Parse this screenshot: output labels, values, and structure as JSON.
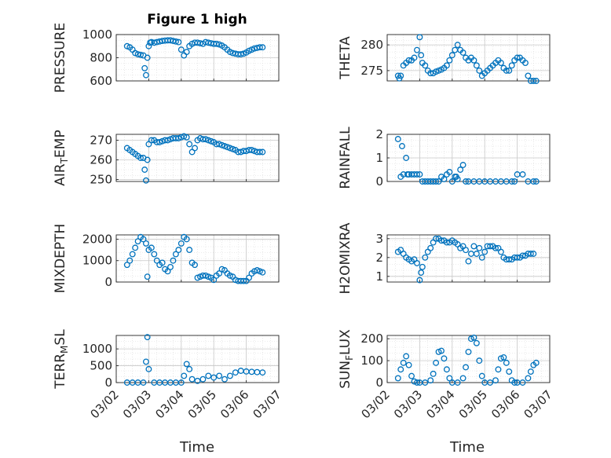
{
  "figure": {
    "title": "Figure 1 high",
    "xlabel": "Time",
    "marker_color": "#0072BD"
  },
  "chart_data": [
    {
      "type": "scatter",
      "marker": "circle",
      "ylabel": "PRESSURE",
      "ylim": [
        600,
        1000
      ],
      "yticks": [
        "600",
        "800",
        "1000"
      ],
      "grid": true,
      "xlim": [
        "03/02",
        "03/07"
      ],
      "xticks": [
        "03/02",
        "03/03",
        "03/04",
        "03/05",
        "03/06",
        "03/07"
      ],
      "x": [
        "03/02 08:00",
        "03/02 10:00",
        "03/02 12:00",
        "03/02 14:00",
        "03/02 16:00",
        "03/02 18:00",
        "03/02 20:00",
        "03/02 21:00",
        "03/02 22:00",
        "03/02 23:00",
        "03/03 00:00",
        "03/03 01:00",
        "03/03 02:00",
        "03/03 04:00",
        "03/03 06:00",
        "03/03 08:00",
        "03/03 10:00",
        "03/03 12:00",
        "03/03 14:00",
        "03/03 16:00",
        "03/03 18:00",
        "03/03 20:00",
        "03/03 22:00",
        "03/04 00:00",
        "03/04 02:00",
        "03/04 04:00",
        "03/04 06:00",
        "03/04 08:00",
        "03/04 10:00",
        "03/04 12:00",
        "03/04 14:00",
        "03/04 16:00",
        "03/04 18:00",
        "03/04 20:00",
        "03/04 22:00",
        "03/05 00:00",
        "03/05 02:00",
        "03/05 04:00",
        "03/05 06:00",
        "03/05 08:00",
        "03/05 10:00",
        "03/05 12:00",
        "03/05 14:00",
        "03/05 16:00",
        "03/05 18:00",
        "03/05 20:00",
        "03/05 22:00",
        "03/06 00:00",
        "03/06 02:00",
        "03/06 04:00",
        "03/06 06:00",
        "03/06 08:00",
        "03/06 10:00",
        "03/06 12:00"
      ],
      "y": [
        900,
        890,
        870,
        840,
        830,
        825,
        820,
        710,
        650,
        800,
        900,
        930,
        935,
        930,
        935,
        940,
        945,
        948,
        950,
        950,
        945,
        940,
        935,
        870,
        820,
        850,
        900,
        920,
        930,
        930,
        925,
        920,
        935,
        930,
        925,
        920,
        920,
        915,
        905,
        890,
        870,
        850,
        840,
        835,
        830,
        830,
        835,
        845,
        860,
        870,
        880,
        885,
        890,
        890
      ]
    },
    {
      "type": "scatter",
      "marker": "circle",
      "ylabel": "THETA",
      "ylim": [
        273,
        282
      ],
      "yticks": [
        "275",
        "280"
      ],
      "grid": true,
      "xlim": [
        "03/02",
        "03/07"
      ],
      "xticks": [
        "03/02",
        "03/03",
        "03/04",
        "03/05",
        "03/06",
        "03/07"
      ],
      "x": [
        "03/02 08:00",
        "03/02 09:00",
        "03/02 10:00",
        "03/02 12:00",
        "03/02 14:00",
        "03/02 16:00",
        "03/02 18:00",
        "03/02 20:00",
        "03/02 22:00",
        "03/03 00:00",
        "03/03 01:00",
        "03/03 02:00",
        "03/03 04:00",
        "03/03 06:00",
        "03/03 08:00",
        "03/03 10:00",
        "03/03 12:00",
        "03/03 14:00",
        "03/03 16:00",
        "03/03 18:00",
        "03/03 20:00",
        "03/03 22:00",
        "03/04 00:00",
        "03/04 02:00",
        "03/04 04:00",
        "03/04 06:00",
        "03/04 08:00",
        "03/04 10:00",
        "03/04 12:00",
        "03/04 14:00",
        "03/04 16:00",
        "03/04 18:00",
        "03/04 20:00",
        "03/04 22:00",
        "03/05 00:00",
        "03/05 02:00",
        "03/05 04:00",
        "03/05 06:00",
        "03/05 08:00",
        "03/05 10:00",
        "03/05 12:00",
        "03/05 14:00",
        "03/05 16:00",
        "03/05 18:00",
        "03/05 20:00",
        "03/05 22:00",
        "03/06 00:00",
        "03/06 02:00",
        "03/06 04:00",
        "03/06 06:00",
        "03/06 08:00",
        "03/06 10:00",
        "03/06 12:00",
        "03/06 14:00"
      ],
      "y": [
        274,
        273.5,
        274,
        276,
        276.5,
        277,
        277,
        277.5,
        279,
        281.5,
        278,
        276.5,
        276,
        275,
        274.5,
        274.5,
        274.8,
        275,
        275.2,
        275.5,
        276,
        277,
        278,
        279,
        280,
        279,
        278.5,
        277.5,
        277,
        277.5,
        277,
        276,
        275,
        274,
        274.5,
        275,
        275.5,
        276,
        276.5,
        277,
        276.5,
        275.5,
        275,
        275,
        276,
        277,
        277.5,
        277.5,
        277,
        276.5,
        274,
        273,
        273,
        273
      ]
    },
    {
      "type": "scatter",
      "marker": "circle",
      "ylabel": "AIR_TEMP",
      "ylabel_display": [
        "AIR",
        "T",
        "EMP"
      ],
      "ylim": [
        249,
        273
      ],
      "yticks": [
        "250",
        "260",
        "270"
      ],
      "grid": true,
      "xlim": [
        "03/02",
        "03/07"
      ],
      "xticks": [
        "03/02",
        "03/03",
        "03/04",
        "03/05",
        "03/06",
        "03/07"
      ],
      "x": [
        "03/02 08:00",
        "03/02 10:00",
        "03/02 12:00",
        "03/02 14:00",
        "03/02 16:00",
        "03/02 18:00",
        "03/02 20:00",
        "03/02 21:00",
        "03/02 22:00",
        "03/02 23:00",
        "03/03 00:00",
        "03/03 02:00",
        "03/03 04:00",
        "03/03 06:00",
        "03/03 08:00",
        "03/03 10:00",
        "03/03 12:00",
        "03/03 14:00",
        "03/03 16:00",
        "03/03 18:00",
        "03/03 20:00",
        "03/03 22:00",
        "03/04 00:00",
        "03/04 02:00",
        "03/04 04:00",
        "03/04 06:00",
        "03/04 08:00",
        "03/04 10:00",
        "03/04 12:00",
        "03/04 14:00",
        "03/04 16:00",
        "03/04 18:00",
        "03/04 20:00",
        "03/04 22:00",
        "03/05 00:00",
        "03/05 02:00",
        "03/05 04:00",
        "03/05 06:00",
        "03/05 08:00",
        "03/05 10:00",
        "03/05 12:00",
        "03/05 14:00",
        "03/05 16:00",
        "03/05 18:00",
        "03/05 20:00",
        "03/05 22:00",
        "03/06 00:00",
        "03/06 02:00",
        "03/06 04:00",
        "03/06 06:00",
        "03/06 08:00",
        "03/06 10:00",
        "03/06 12:00"
      ],
      "y": [
        266,
        265,
        264,
        263,
        262,
        261,
        261,
        255,
        249.5,
        260,
        268,
        270,
        270,
        269,
        269,
        269.5,
        270,
        270,
        270.5,
        271,
        271,
        271,
        271.5,
        272,
        271.5,
        268,
        264,
        266,
        270,
        271,
        270.5,
        270.5,
        270,
        269.5,
        269,
        268,
        268,
        267.5,
        267,
        266.5,
        266,
        265.5,
        265,
        264,
        264,
        264.5,
        264.5,
        265,
        265,
        264.5,
        264,
        264,
        264
      ]
    },
    {
      "type": "scatter",
      "marker": "circle",
      "ylabel": "RAINFALL",
      "ylim": [
        0,
        2
      ],
      "yticks": [
        "0",
        "1",
        "2"
      ],
      "grid": true,
      "xlim": [
        "03/02",
        "03/07"
      ],
      "xticks": [
        "03/02",
        "03/03",
        "03/04",
        "03/05",
        "03/06",
        "03/07"
      ],
      "x": [
        "03/02 08:00",
        "03/02 10:00",
        "03/02 11:00",
        "03/02 12:00",
        "03/02 14:00",
        "03/02 15:00",
        "03/02 16:00",
        "03/02 18:00",
        "03/02 20:00",
        "03/02 22:00",
        "03/03 00:00",
        "03/03 02:00",
        "03/03 04:00",
        "03/03 06:00",
        "03/03 08:00",
        "03/03 10:00",
        "03/03 12:00",
        "03/03 14:00",
        "03/03 16:00",
        "03/03 18:00",
        "03/03 20:00",
        "03/03 22:00",
        "03/04 00:00",
        "03/04 02:00",
        "03/04 03:00",
        "03/04 04:00",
        "03/04 06:00",
        "03/04 08:00",
        "03/04 10:00",
        "03/04 12:00",
        "03/04 16:00",
        "03/04 20:00",
        "03/05 00:00",
        "03/05 04:00",
        "03/05 08:00",
        "03/05 12:00",
        "03/05 16:00",
        "03/05 20:00",
        "03/05 22:00",
        "03/06 00:00",
        "03/06 04:00",
        "03/06 08:00",
        "03/06 12:00",
        "03/06 14:00"
      ],
      "y": [
        1.8,
        0.2,
        1.5,
        0.3,
        1.0,
        0.3,
        0.3,
        0.3,
        0.3,
        0.3,
        0.3,
        0,
        0,
        0,
        0,
        0,
        0,
        0,
        0.2,
        0.1,
        0.3,
        0.4,
        0,
        0.2,
        0.2,
        0.1,
        0.5,
        0.7,
        0,
        0,
        0,
        0,
        0,
        0,
        0,
        0,
        0,
        0,
        0,
        0.3,
        0.3,
        0,
        0,
        0
      ]
    },
    {
      "type": "scatter",
      "marker": "circle",
      "ylabel": "MIXDEPTH",
      "ylim": [
        0,
        2200
      ],
      "yticks": [
        "0",
        "1000",
        "2000"
      ],
      "grid": true,
      "xlim": [
        "03/02",
        "03/07"
      ],
      "xticks": [
        "03/02",
        "03/03",
        "03/04",
        "03/05",
        "03/06",
        "03/07"
      ],
      "x": [
        "03/02 08:00",
        "03/02 10:00",
        "03/02 12:00",
        "03/02 14:00",
        "03/02 16:00",
        "03/02 18:00",
        "03/02 20:00",
        "03/02 22:00",
        "03/02 23:00",
        "03/03 00:00",
        "03/03 02:00",
        "03/03 04:00",
        "03/03 06:00",
        "03/03 08:00",
        "03/03 10:00",
        "03/03 12:00",
        "03/03 14:00",
        "03/03 16:00",
        "03/03 18:00",
        "03/03 20:00",
        "03/03 22:00",
        "03/04 00:00",
        "03/04 02:00",
        "03/04 04:00",
        "03/04 06:00",
        "03/04 08:00",
        "03/04 10:00",
        "03/04 12:00",
        "03/04 14:00",
        "03/04 16:00",
        "03/04 18:00",
        "03/04 20:00",
        "03/04 22:00",
        "03/05 00:00",
        "03/05 02:00",
        "03/05 04:00",
        "03/05 06:00",
        "03/05 08:00",
        "03/05 10:00",
        "03/05 12:00",
        "03/05 14:00",
        "03/05 16:00",
        "03/05 18:00",
        "03/05 20:00",
        "03/05 22:00",
        "03/06 00:00",
        "03/06 02:00",
        "03/06 04:00",
        "03/06 06:00",
        "03/06 08:00",
        "03/06 10:00",
        "03/06 12:00"
      ],
      "y": [
        800,
        1000,
        1300,
        1600,
        1900,
        2100,
        2000,
        1800,
        250,
        1500,
        1600,
        1300,
        1000,
        800,
        900,
        600,
        500,
        700,
        1000,
        1300,
        1500,
        1800,
        2100,
        2000,
        1500,
        900,
        800,
        200,
        250,
        300,
        300,
        250,
        200,
        100,
        300,
        400,
        600,
        550,
        400,
        300,
        250,
        100,
        50,
        50,
        50,
        50,
        200,
        400,
        500,
        550,
        500,
        450
      ]
    },
    {
      "type": "scatter",
      "marker": "circle",
      "ylabel": "H2OMIXRA",
      "ylim": [
        0.7,
        3.2
      ],
      "yticks": [
        "1",
        "2",
        "3"
      ],
      "grid": true,
      "xlim": [
        "03/02",
        "03/07"
      ],
      "xticks": [
        "03/02",
        "03/03",
        "03/04",
        "03/05",
        "03/06",
        "03/07"
      ],
      "x": [
        "03/02 08:00",
        "03/02 10:00",
        "03/02 12:00",
        "03/02 14:00",
        "03/02 16:00",
        "03/02 18:00",
        "03/02 20:00",
        "03/02 22:00",
        "03/03 00:00",
        "03/03 01:00",
        "03/03 02:00",
        "03/03 04:00",
        "03/03 06:00",
        "03/03 08:00",
        "03/03 10:00",
        "03/03 12:00",
        "03/03 14:00",
        "03/03 16:00",
        "03/03 18:00",
        "03/03 20:00",
        "03/03 22:00",
        "03/04 00:00",
        "03/04 02:00",
        "03/04 04:00",
        "03/04 06:00",
        "03/04 08:00",
        "03/04 10:00",
        "03/04 12:00",
        "03/04 14:00",
        "03/04 16:00",
        "03/04 18:00",
        "03/04 20:00",
        "03/04 22:00",
        "03/05 00:00",
        "03/05 02:00",
        "03/05 04:00",
        "03/05 06:00",
        "03/05 08:00",
        "03/05 10:00",
        "03/05 12:00",
        "03/05 14:00",
        "03/05 16:00",
        "03/05 18:00",
        "03/05 20:00",
        "03/05 22:00",
        "03/06 00:00",
        "03/06 02:00",
        "03/06 04:00",
        "03/06 06:00",
        "03/06 08:00",
        "03/06 10:00",
        "03/06 12:00"
      ],
      "y": [
        2.3,
        2.4,
        2.2,
        2.0,
        1.9,
        1.8,
        1.9,
        1.7,
        0.8,
        1.2,
        1.5,
        2.0,
        2.3,
        2.5,
        2.8,
        3.0,
        3.0,
        2.9,
        2.9,
        2.8,
        2.8,
        2.9,
        2.8,
        2.7,
        2.5,
        2.6,
        2.4,
        1.8,
        2.2,
        2.6,
        2.2,
        2.5,
        2.0,
        2.3,
        2.6,
        2.6,
        2.6,
        2.5,
        2.5,
        2.3,
        2.0,
        1.9,
        1.9,
        1.9,
        2.0,
        2.0,
        2.0,
        2.1,
        2.1,
        2.2,
        2.2,
        2.2
      ]
    },
    {
      "type": "scatter",
      "marker": "circle",
      "ylabel": "TERR_MSL",
      "ylabel_display": [
        "TERR",
        "M",
        "SL"
      ],
      "ylim": [
        0,
        1400
      ],
      "yticks": [
        "0",
        "500",
        "1000"
      ],
      "grid": true,
      "xlim": [
        "03/02",
        "03/07"
      ],
      "xticks": [
        "03/02",
        "03/03",
        "03/04",
        "03/05",
        "03/06",
        "03/07"
      ],
      "x": [
        "03/02 08:00",
        "03/02 12:00",
        "03/02 16:00",
        "03/02 20:00",
        "03/02 22:00",
        "03/02 23:00",
        "03/03 00:00",
        "03/03 04:00",
        "03/03 08:00",
        "03/03 12:00",
        "03/03 16:00",
        "03/03 20:00",
        "03/04 00:00",
        "03/04 02:00",
        "03/04 04:00",
        "03/04 06:00",
        "03/04 08:00",
        "03/04 12:00",
        "03/04 16:00",
        "03/04 20:00",
        "03/05 00:00",
        "03/05 04:00",
        "03/05 08:00",
        "03/05 12:00",
        "03/05 16:00",
        "03/05 20:00",
        "03/06 00:00",
        "03/06 04:00",
        "03/06 08:00",
        "03/06 12:00"
      ],
      "y": [
        0,
        0,
        0,
        0,
        620,
        1350,
        400,
        0,
        0,
        0,
        0,
        0,
        0,
        200,
        550,
        400,
        100,
        50,
        100,
        200,
        150,
        200,
        100,
        200,
        300,
        350,
        330,
        320,
        310,
        300
      ]
    },
    {
      "type": "scatter",
      "marker": "circle",
      "ylabel": "SUN_FLUX",
      "ylabel_display": [
        "SUN",
        "F",
        "LUX"
      ],
      "ylim": [
        0,
        215
      ],
      "yticks": [
        "0",
        "100",
        "200"
      ],
      "grid": true,
      "xlim": [
        "03/02",
        "03/07"
      ],
      "xticks": [
        "03/02",
        "03/03",
        "03/04",
        "03/05",
        "03/06",
        "03/07"
      ],
      "x": [
        "03/02 08:00",
        "03/02 10:00",
        "03/02 12:00",
        "03/02 14:00",
        "03/02 16:00",
        "03/02 18:00",
        "03/02 20:00",
        "03/02 22:00",
        "03/03 00:00",
        "03/03 04:00",
        "03/03 08:00",
        "03/03 10:00",
        "03/03 12:00",
        "03/03 14:00",
        "03/03 16:00",
        "03/03 18:00",
        "03/03 20:00",
        "03/03 22:00",
        "03/04 00:00",
        "03/04 04:00",
        "03/04 08:00",
        "03/04 10:00",
        "03/04 12:00",
        "03/04 14:00",
        "03/04 16:00",
        "03/04 18:00",
        "03/04 20:00",
        "03/04 22:00",
        "03/05 00:00",
        "03/05 04:00",
        "03/05 08:00",
        "03/05 10:00",
        "03/05 12:00",
        "03/05 14:00",
        "03/05 16:00",
        "03/05 18:00",
        "03/05 20:00",
        "03/05 22:00",
        "03/06 00:00",
        "03/06 04:00",
        "03/06 08:00",
        "03/06 10:00",
        "03/06 12:00",
        "03/06 14:00"
      ],
      "y": [
        20,
        60,
        90,
        120,
        80,
        30,
        5,
        0,
        0,
        0,
        10,
        40,
        90,
        140,
        145,
        110,
        60,
        20,
        0,
        0,
        20,
        70,
        140,
        200,
        205,
        180,
        100,
        30,
        0,
        0,
        10,
        60,
        110,
        115,
        90,
        50,
        10,
        0,
        0,
        0,
        20,
        50,
        80,
        90
      ]
    }
  ]
}
